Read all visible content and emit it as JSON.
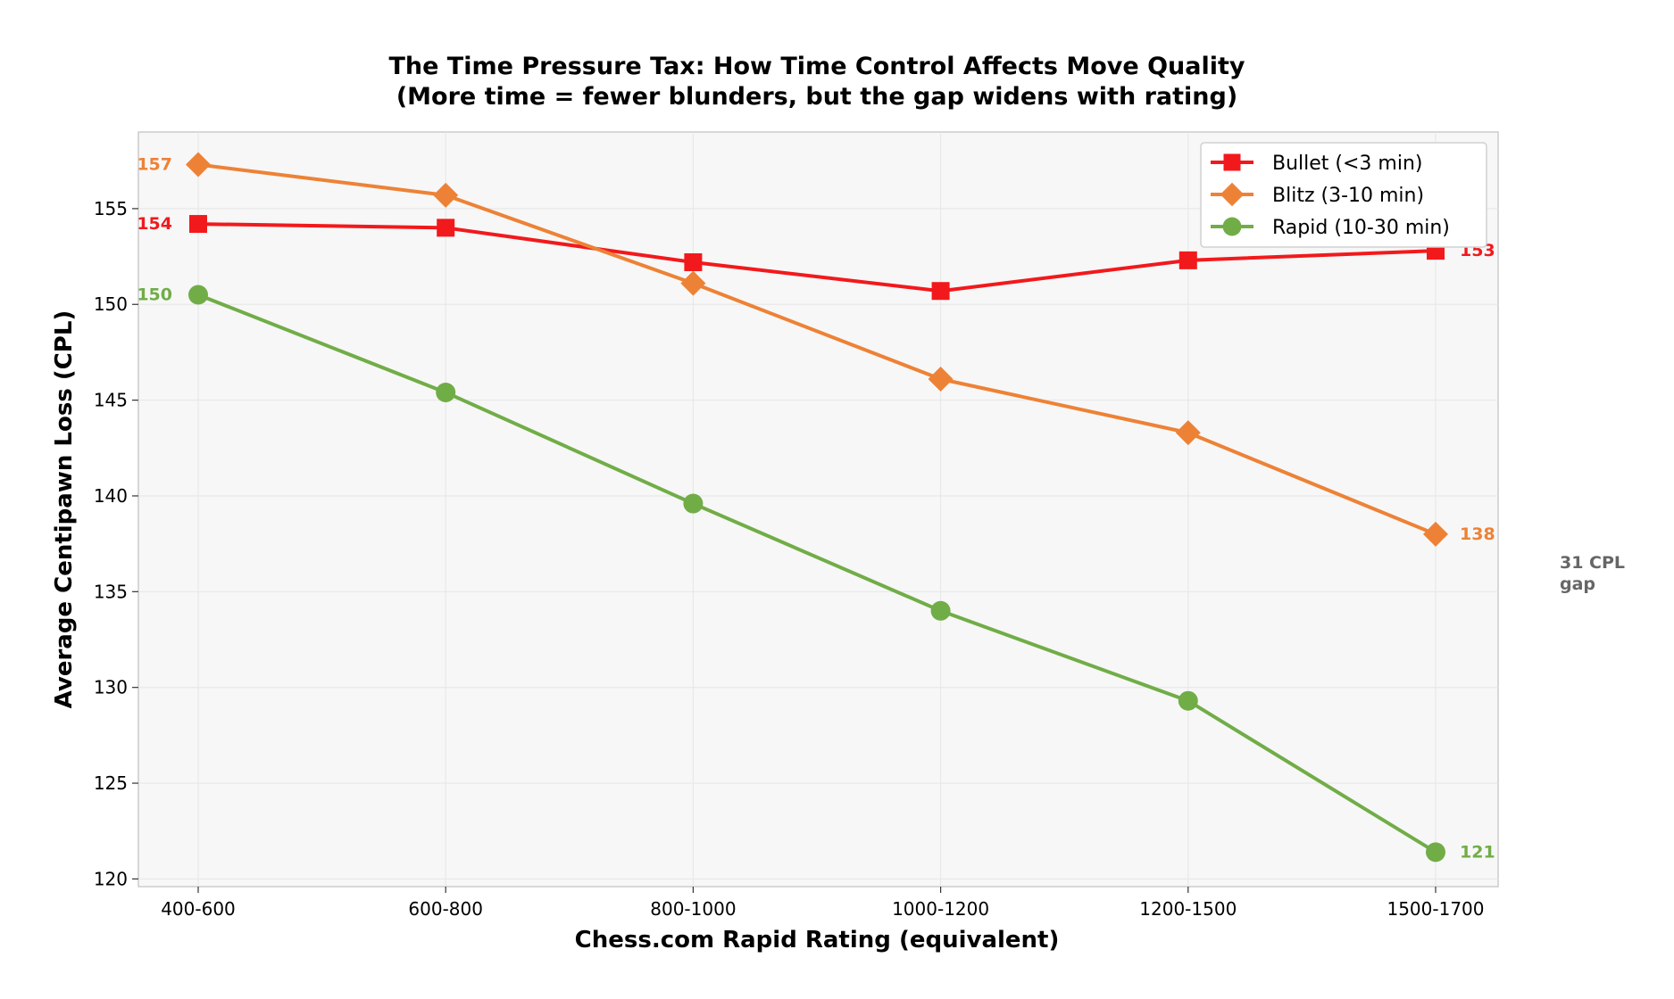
{
  "chart_data": {
    "type": "line",
    "title": "The Time Pressure Tax: How Time Control Affects Move Quality",
    "subtitle": "(More time = fewer blunders, but the gap widens with rating)",
    "xlabel": "Chess.com Rapid Rating (equivalent)",
    "ylabel": "Average Centipawn Loss (CPL)",
    "categories": [
      "400-600",
      "600-800",
      "800-1000",
      "1000-1200",
      "1200-1500",
      "1500-1700"
    ],
    "ylim": [
      119.6,
      159.0
    ],
    "yticks": [
      120,
      125,
      130,
      135,
      140,
      145,
      150,
      155
    ],
    "grid": true,
    "legend_position": "top-right",
    "series": [
      {
        "name": "Bullet (<3 min)",
        "color": "#f2191c",
        "marker": "square",
        "values": [
          154.2,
          154.0,
          152.2,
          150.7,
          152.3,
          152.8
        ],
        "labels": [
          {
            "index": 0,
            "text": "154",
            "side": "left"
          },
          {
            "index": 5,
            "text": "153",
            "side": "right"
          }
        ]
      },
      {
        "name": "Blitz (3-10 min)",
        "color": "#ed8236",
        "marker": "diamond",
        "values": [
          157.3,
          155.7,
          151.1,
          146.1,
          143.3,
          138.0
        ],
        "labels": [
          {
            "index": 0,
            "text": "157",
            "side": "left"
          },
          {
            "index": 5,
            "text": "138",
            "side": "right"
          }
        ]
      },
      {
        "name": "Rapid (10-30 min)",
        "color": "#71ad47",
        "marker": "circle",
        "values": [
          150.5,
          145.4,
          139.6,
          134.0,
          129.3,
          121.4
        ],
        "labels": [
          {
            "index": 0,
            "text": "150",
            "side": "left"
          },
          {
            "index": 5,
            "text": "121",
            "side": "right"
          }
        ]
      }
    ],
    "annotation": {
      "lines": [
        "31 CPL",
        "gap"
      ],
      "color": "#666666"
    }
  }
}
